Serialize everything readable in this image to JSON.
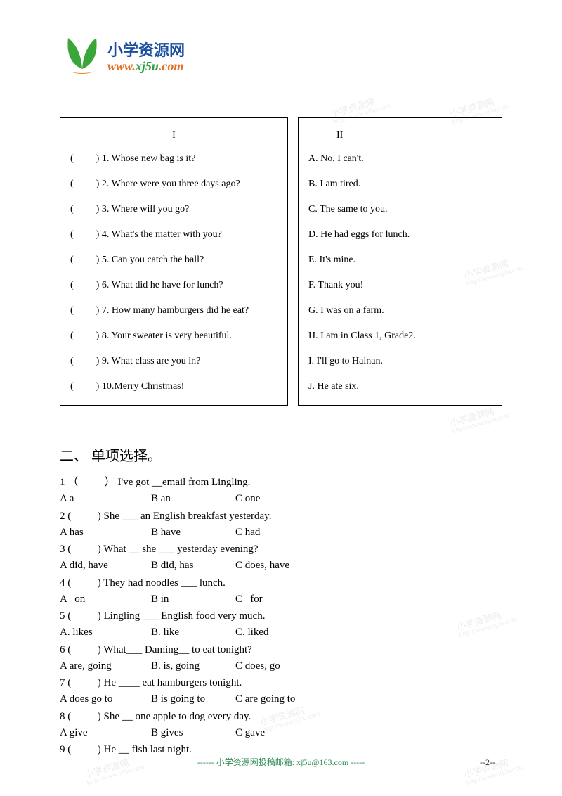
{
  "logo": {
    "cn": "小学资源网",
    "cn_color": "#1a4fa0",
    "url_prefix": "www.",
    "url_mid": "xj5u",
    "url_suffix": ".com",
    "prefix_color": "#e86c1f",
    "mid_color": "#2a9b3e",
    "suffix_color": "#e86c1f",
    "leaf_green": "#3aa63a",
    "leaf_orange": "#e8861f"
  },
  "match": {
    "title_left": "I",
    "title_right": "II",
    "blank_prefix": "(",
    "blank_suffix": ")",
    "left": [
      "1. Whose new bag is it?",
      "2. Where were you three days ago?",
      "3. Where will you go?",
      "4. What's the matter with you?",
      "5. Can you catch the ball?",
      "6. What did he have for lunch?",
      "7. How many hamburgers did he eat?",
      "8. Your sweater is very beautiful.",
      "9. What class are you in?",
      "10.Merry Christmas!"
    ],
    "right": [
      "A. No, I can't.",
      "B. I am tired.",
      "C. The same to you.",
      "D. He had eggs for lunch.",
      "E. It's mine.",
      "F. Thank you!",
      "G. I was on a farm.",
      "H. I am in Class 1, Grade2.",
      "I. I'll go to Hainan.",
      "J. He ate six."
    ]
  },
  "section2": {
    "title": "二、 单项选择。",
    "items": [
      {
        "n": "1",
        "open": "（",
        "close": "）",
        "q": "I've got __email from Lingling.",
        "a": "A a",
        "b": "B an",
        "c": "C one"
      },
      {
        "n": "2",
        "open": "(",
        "close": ")",
        "q": " She ___ an English breakfast yesterday.",
        "a": "A has",
        "b": "B have",
        "c": "C had"
      },
      {
        "n": "3",
        "open": "(",
        "close": ")",
        "q": "What __ she ___ yesterday evening?",
        "a": "A did, have",
        "b": "B did, has",
        "c": "C does, have"
      },
      {
        "n": "4",
        "open": "(",
        "close": ")",
        "q": " They had noodles ___ lunch.",
        "a": "A   on",
        "b": "B in",
        "c": "C   for"
      },
      {
        "n": "5",
        "open": "(",
        "close": ")",
        "q": " Lingling ___ English food very much.",
        "a": "A. likes",
        "b": "B. like",
        "c": "C. liked"
      },
      {
        "n": "6",
        "open": "(",
        "close": ")",
        "q": " What___ Daming__ to eat tonight?",
        "a": "A are, going",
        "b": "B. is, going",
        "c": "C does, go"
      },
      {
        "n": "7",
        "open": "(",
        "close": ")",
        "q": " He ____ eat hamburgers tonight.",
        "a": "A does go to",
        "b": "B is going to",
        "c": "C are going to"
      },
      {
        "n": "8",
        "open": "(",
        "close": ")",
        "q": " She __ one apple to dog every day.",
        "a": "A give",
        "b": "B gives",
        "c": "C gave"
      },
      {
        "n": "9",
        "open": "(",
        "close": ")",
        "q": " He __ fish last night.",
        "a": "",
        "b": "",
        "c": ""
      }
    ]
  },
  "watermark": {
    "line1": "小学资源网",
    "line2": "http://www.xj5u.com"
  },
  "footer": {
    "text": "------ 小学资源网投稿邮箱: xj5u@163.com -----",
    "page": "--2--"
  }
}
